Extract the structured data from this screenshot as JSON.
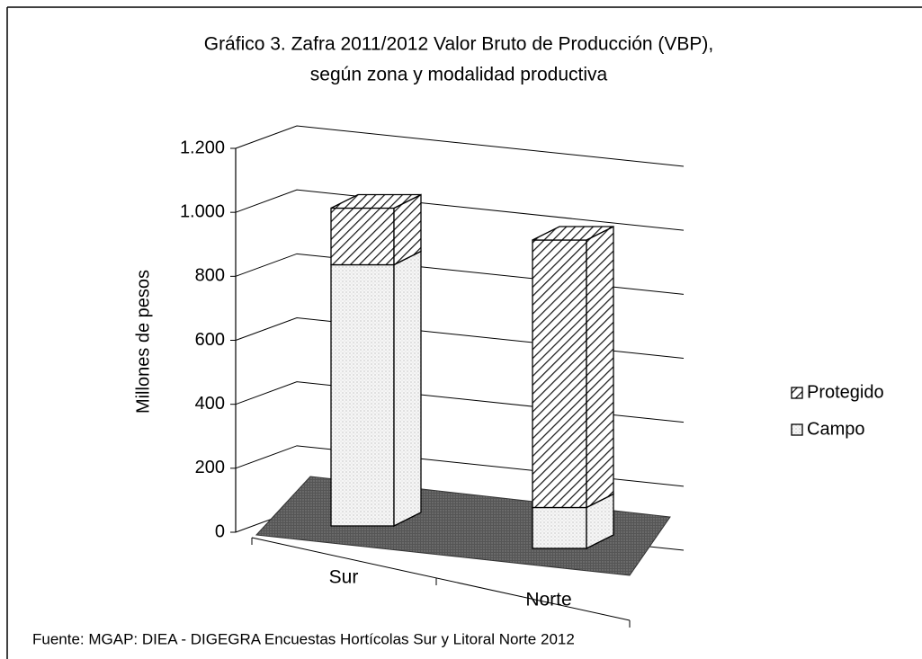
{
  "chart_data": {
    "type": "bar3d_stacked",
    "title": [
      "Gráfico 3. Zafra 2011/2012 Valor Bruto de Producción (VBP),",
      "según zona y modalidad productiva"
    ],
    "y_label": "Millones de pesos",
    "source": "Fuente: MGAP: DIEA - DIGEGRA Encuestas Hortícolas Sur y Litoral Norte 2012",
    "categories": [
      "Sur",
      "Norte"
    ],
    "series": [
      {
        "name": "Campo",
        "color": "#f4f4f4",
        "pattern": "dots",
        "values": [
          830,
          130
        ]
      },
      {
        "name": "Protegido",
        "color": "#ffffff",
        "pattern": "hatch",
        "values": [
          180,
          850
        ]
      }
    ],
    "ylim": [
      0,
      1200
    ],
    "yticks": [
      0,
      200,
      400,
      600,
      800,
      {
        "value": 1000,
        "label": "1.000"
      },
      {
        "value": 1200,
        "label": "1.200"
      }
    ],
    "grid": true,
    "legend": "right"
  }
}
